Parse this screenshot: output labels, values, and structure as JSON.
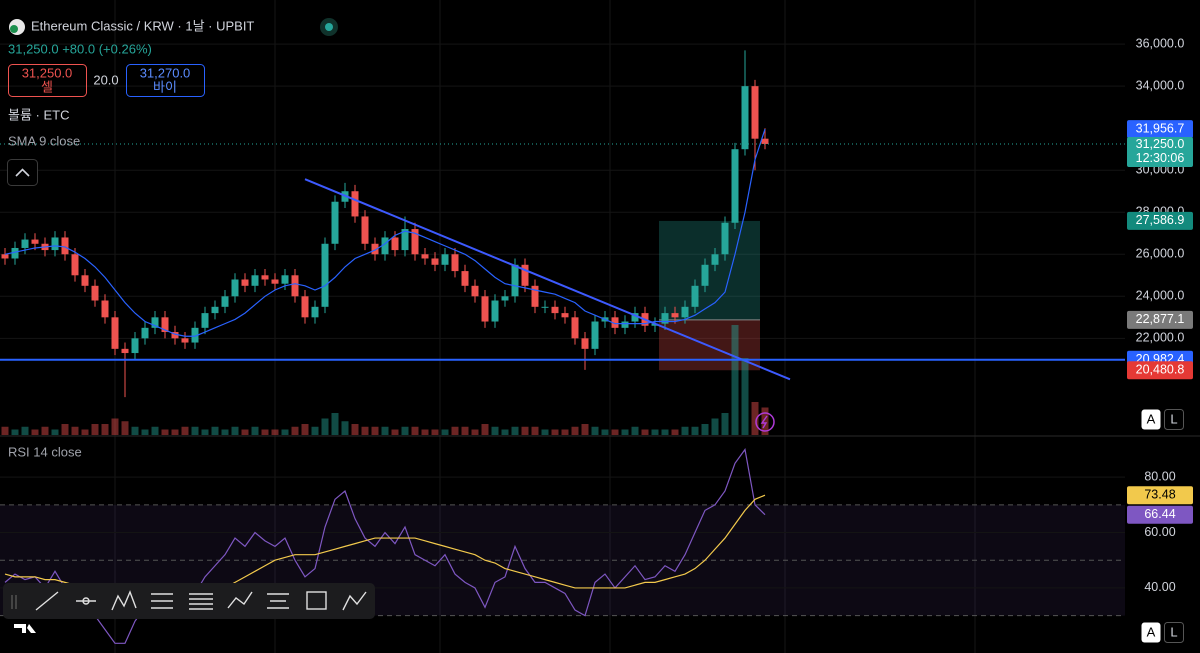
{
  "header": {
    "symbol": "Ethereum Classic / KRW · 1날 · UPBIT",
    "quote": "31,250.0 +80.0 (+0.26%)",
    "sell_price": "31,250.0",
    "sell_label": "셀",
    "spread": "20.0",
    "buy_price": "31,270.0",
    "buy_label": "바이",
    "auto_button": "A",
    "log_button": "L"
  },
  "chart_data": [
    {
      "type": "candlestick",
      "volume_name": "볼륨 · ETC",
      "up_color": "#26a69a",
      "down_color": "#ef5350",
      "candles": [
        [
          26000,
          26300,
          25500,
          25800
        ],
        [
          25800,
          26600,
          25500,
          26300
        ],
        [
          26300,
          27000,
          26000,
          26700
        ],
        [
          26700,
          27000,
          26200,
          26500
        ],
        [
          26500,
          26800,
          25900,
          26200
        ],
        [
          26200,
          27100,
          25900,
          26800
        ],
        [
          26800,
          27100,
          25700,
          26000
        ],
        [
          26000,
          26300,
          24700,
          25000
        ],
        [
          25000,
          25300,
          24200,
          24500
        ],
        [
          24500,
          24800,
          23500,
          23800
        ],
        [
          23800,
          24100,
          22700,
          23000
        ],
        [
          23000,
          23300,
          21200,
          21500
        ],
        [
          21500,
          21800,
          19200,
          21300
        ],
        [
          21300,
          22300,
          21000,
          22000
        ],
        [
          22000,
          22800,
          21700,
          22500
        ],
        [
          22500,
          23300,
          22200,
          23000
        ],
        [
          23000,
          23300,
          22000,
          22300
        ],
        [
          22300,
          22600,
          21700,
          22000
        ],
        [
          22000,
          22300,
          21500,
          21800
        ],
        [
          21800,
          22800,
          21500,
          22500
        ],
        [
          22500,
          23500,
          22200,
          23200
        ],
        [
          23200,
          23800,
          22900,
          23500
        ],
        [
          23500,
          24300,
          23200,
          24000
        ],
        [
          24000,
          25100,
          23700,
          24800
        ],
        [
          24800,
          25100,
          24200,
          24500
        ],
        [
          24500,
          25300,
          24200,
          25000
        ],
        [
          25000,
          25300,
          24500,
          24800
        ],
        [
          24800,
          25100,
          24300,
          24600
        ],
        [
          24600,
          25300,
          24300,
          25000
        ],
        [
          25000,
          25300,
          23700,
          24000
        ],
        [
          24000,
          24300,
          22700,
          23000
        ],
        [
          23000,
          23800,
          22700,
          23500
        ],
        [
          23500,
          26800,
          23200,
          26500
        ],
        [
          26500,
          28800,
          26200,
          28500
        ],
        [
          28500,
          29400,
          28200,
          29000
        ],
        [
          29000,
          29300,
          27500,
          27800
        ],
        [
          27800,
          28100,
          26200,
          26500
        ],
        [
          26500,
          26800,
          25700,
          26000
        ],
        [
          26000,
          27100,
          25700,
          26800
        ],
        [
          26800,
          27100,
          25900,
          26200
        ],
        [
          26200,
          27800,
          25900,
          27200
        ],
        [
          27200,
          27500,
          25700,
          26000
        ],
        [
          26000,
          26300,
          25500,
          25800
        ],
        [
          25800,
          26100,
          25200,
          25500
        ],
        [
          25500,
          26300,
          25200,
          26000
        ],
        [
          26000,
          26300,
          24900,
          25200
        ],
        [
          25200,
          25500,
          24200,
          24500
        ],
        [
          24500,
          24800,
          23700,
          24000
        ],
        [
          24000,
          24300,
          22500,
          22800
        ],
        [
          22800,
          24100,
          22500,
          23800
        ],
        [
          23800,
          24300,
          23500,
          24000
        ],
        [
          24000,
          25800,
          23700,
          25500
        ],
        [
          25500,
          25800,
          24200,
          24500
        ],
        [
          24500,
          24800,
          23200,
          23500
        ],
        [
          23500,
          23800,
          23200,
          23500
        ],
        [
          23500,
          23800,
          22900,
          23200
        ],
        [
          23200,
          23500,
          22700,
          23000
        ],
        [
          23000,
          23300,
          21700,
          22000
        ],
        [
          22000,
          22300,
          20500,
          21500
        ],
        [
          21500,
          23100,
          21200,
          22800
        ],
        [
          22800,
          23300,
          22500,
          23000
        ],
        [
          23000,
          23300,
          22200,
          22500
        ],
        [
          22500,
          23100,
          22200,
          22800
        ],
        [
          22800,
          23500,
          22500,
          23200
        ],
        [
          23200,
          23500,
          22300,
          22600
        ],
        [
          22600,
          23000,
          22300,
          22700
        ],
        [
          22700,
          23500,
          22400,
          23200
        ],
        [
          23200,
          23500,
          22700,
          23000
        ],
        [
          23000,
          23800,
          22700,
          23500
        ],
        [
          23500,
          24800,
          23200,
          24500
        ],
        [
          24500,
          25800,
          24200,
          25500
        ],
        [
          25500,
          26300,
          25200,
          26000
        ],
        [
          26000,
          27800,
          25700,
          27500
        ],
        [
          27500,
          31300,
          27200,
          31000
        ],
        [
          31000,
          35700,
          30700,
          34000
        ],
        [
          34000,
          34300,
          30000,
          31500
        ],
        [
          31500,
          32000,
          31000,
          31250
        ]
      ],
      "volume": [
        3,
        2,
        3,
        2,
        3,
        2,
        4,
        3,
        2,
        4,
        4,
        6,
        5,
        3,
        2,
        3,
        2,
        2,
        3,
        3,
        2,
        3,
        2,
        3,
        2,
        3,
        2,
        2,
        2,
        3,
        4,
        3,
        6,
        8,
        5,
        4,
        3,
        3,
        3,
        2,
        3,
        3,
        2,
        2,
        2,
        3,
        3,
        2,
        4,
        3,
        2,
        3,
        3,
        3,
        2,
        2,
        2,
        3,
        4,
        3,
        2,
        2,
        2,
        3,
        2,
        2,
        2,
        2,
        3,
        3,
        4,
        6,
        8,
        40,
        28,
        12,
        10
      ],
      "series": [
        {
          "name": "SMA 9 close",
          "color": "#2962ff",
          "last_label": "31,956.7",
          "values": [
            26000,
            26100,
            26200,
            26300,
            26350,
            26400,
            26350,
            26100,
            25800,
            25400,
            24900,
            24300,
            23700,
            23200,
            22800,
            22600,
            22400,
            22200,
            22100,
            22100,
            22300,
            22500,
            22700,
            22900,
            23200,
            23600,
            24000,
            24300,
            24500,
            24600,
            24500,
            24300,
            24500,
            24900,
            25400,
            25800,
            26000,
            26200,
            26500,
            26900,
            27100,
            27000,
            26800,
            26600,
            26400,
            26200,
            26000,
            25700,
            25300,
            24900,
            24600,
            24500,
            24400,
            24300,
            24200,
            24100,
            23900,
            23700,
            23300,
            23100,
            22900,
            22700,
            22700,
            22700,
            22700,
            22800,
            22800,
            22800,
            22900,
            23100,
            23400,
            23700,
            24200,
            26000,
            28000,
            30500,
            31956.7
          ]
        }
      ],
      "last_price": {
        "value": 31250,
        "label": "31,250.0",
        "countdown": "12:30:06"
      },
      "trendline": [
        [
          30,
          29571
        ],
        [
          78.5,
          20048
        ]
      ],
      "trendline_color": "#3d5afe",
      "hline": {
        "value": 20982.4,
        "label": "20,982.4",
        "color": "#2962ff"
      },
      "position": {
        "start": 65.4,
        "end": 75.5,
        "entry": {
          "value": 22877.1,
          "label": "22,877.1"
        },
        "target": {
          "value": 27586.9,
          "label": "27,586.9"
        },
        "stop": {
          "value": 20480.8,
          "label": "20,480.8"
        }
      },
      "ylim": [
        17400,
        38100
      ],
      "yticks": [
        {
          "value": 22000,
          "label": "22,000.0"
        },
        {
          "value": 24000,
          "label": "24,000.0"
        },
        {
          "value": 26000,
          "label": "26,000.0"
        },
        {
          "value": 28000,
          "label": "28,000.0"
        },
        {
          "value": 30000,
          "label": "30,000.0"
        },
        {
          "value": 34000,
          "label": "34,000.0"
        },
        {
          "value": 36000,
          "label": "36,000.0"
        }
      ]
    },
    {
      "type": "line",
      "title": "RSI 14 close",
      "ylim": [
        16.5,
        94.5
      ],
      "yticks": [
        {
          "value": 40,
          "label": "40.00"
        },
        {
          "value": 60,
          "label": "60.00"
        },
        {
          "value": 80,
          "label": "80.00"
        }
      ],
      "levels": [
        70,
        50,
        30
      ],
      "series": [
        {
          "color": "#7e57c2",
          "last_label": "66.44",
          "values": [
            42,
            45,
            43,
            44,
            40,
            46,
            40,
            35,
            33,
            30,
            25,
            20,
            20,
            28,
            33,
            38,
            35,
            33,
            32,
            38,
            44,
            48,
            52,
            58,
            55,
            60,
            57,
            55,
            58,
            50,
            44,
            47,
            62,
            72,
            75,
            65,
            58,
            55,
            60,
            56,
            62,
            52,
            50,
            48,
            52,
            45,
            42,
            40,
            33,
            42,
            44,
            55,
            47,
            42,
            42,
            40,
            38,
            32,
            30,
            42,
            45,
            40,
            44,
            48,
            43,
            44,
            48,
            46,
            52,
            60,
            68,
            70,
            75,
            85,
            90,
            70,
            66.44
          ]
        },
        {
          "color": "#f2c94c",
          "last_label": "73.48",
          "values": [
            45,
            44,
            44,
            44,
            43,
            43,
            42,
            41,
            40,
            39,
            37,
            35,
            33,
            32,
            31,
            31,
            31,
            32,
            33,
            34,
            36,
            38,
            40,
            42,
            44,
            46,
            48,
            50,
            51,
            52,
            52,
            52,
            53,
            54,
            55,
            56,
            57,
            58,
            58,
            58,
            58,
            58,
            57,
            56,
            55,
            54,
            53,
            52,
            50,
            49,
            47,
            46,
            45,
            44,
            43,
            42,
            41,
            40,
            40,
            40,
            40,
            40,
            40,
            41,
            42,
            42,
            43,
            44,
            45,
            47,
            50,
            54,
            58,
            63,
            68,
            72,
            73.48
          ]
        }
      ]
    }
  ]
}
